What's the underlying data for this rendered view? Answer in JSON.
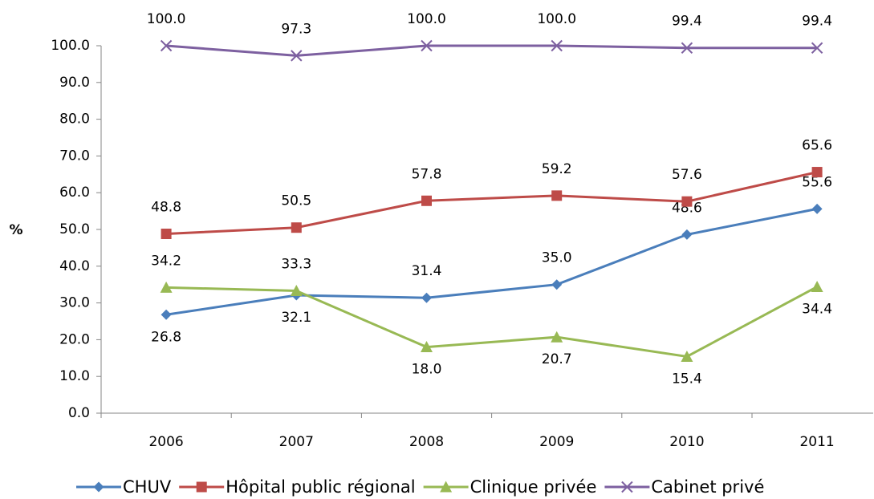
{
  "chart_data": {
    "type": "line",
    "ylabel": "%",
    "categories": [
      "2006",
      "2007",
      "2008",
      "2009",
      "2010",
      "2011"
    ],
    "ylim": [
      0,
      100
    ],
    "yticks": [
      {
        "value": 0,
        "label": "0.0"
      },
      {
        "value": 10,
        "label": "10.0"
      },
      {
        "value": 20,
        "label": "20.0"
      },
      {
        "value": 30,
        "label": "30.0"
      },
      {
        "value": 40,
        "label": "40.0"
      },
      {
        "value": 50,
        "label": "50.0"
      },
      {
        "value": 60,
        "label": "60.0"
      },
      {
        "value": 70,
        "label": "70.0"
      },
      {
        "value": 80,
        "label": "80.0"
      },
      {
        "value": 90,
        "label": "90.0"
      },
      {
        "value": 100,
        "label": "100.0"
      }
    ],
    "legend": "bottom",
    "series": [
      {
        "name": "CHUV",
        "color": "#4a7ebb",
        "marker": "diamond",
        "values": [
          26.8,
          32.1,
          31.4,
          35.0,
          48.6,
          55.6
        ],
        "value_labels": [
          "26.8",
          "32.1",
          "31.4",
          "35.0",
          "48.6",
          "55.6"
        ]
      },
      {
        "name": "Hôpital public régional",
        "color": "#be4b48",
        "marker": "square",
        "values": [
          48.8,
          50.5,
          57.8,
          59.2,
          57.6,
          65.6
        ],
        "value_labels": [
          "48.8",
          "50.5",
          "57.8",
          "59.2",
          "57.6",
          "65.6"
        ]
      },
      {
        "name": "Clinique privée",
        "color": "#98b954",
        "marker": "triangle",
        "values": [
          34.2,
          33.3,
          18.0,
          20.7,
          15.4,
          34.4
        ],
        "value_labels": [
          "34.2",
          "33.3",
          "18.0",
          "20.7",
          "15.4",
          "34.4"
        ]
      },
      {
        "name": "Cabinet privé",
        "color": "#7d60a0",
        "marker": "x",
        "values": [
          100.0,
          97.3,
          100.0,
          100.0,
          99.4,
          99.4
        ],
        "value_labels": [
          "100.0",
          "97.3",
          "100.0",
          "100.0",
          "99.4",
          "99.4"
        ]
      }
    ]
  }
}
